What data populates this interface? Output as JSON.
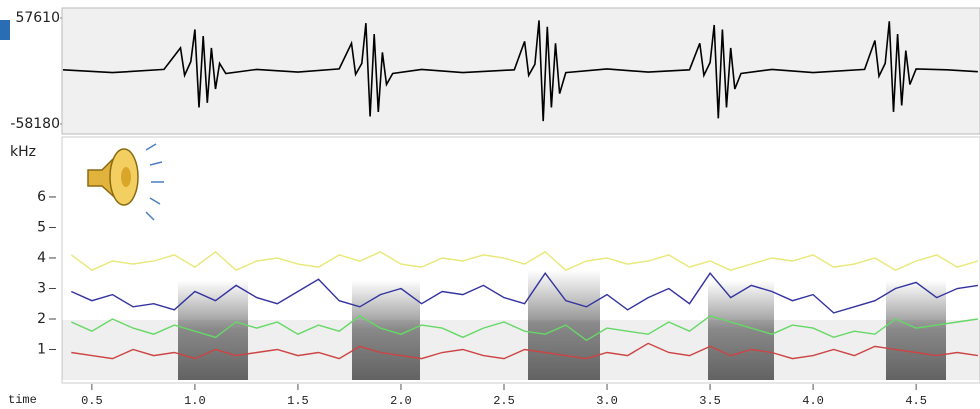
{
  "chart_data": [
    {
      "type": "line",
      "x": [
        0.36,
        0.6,
        0.85,
        0.93,
        0.95,
        0.98,
        1.0,
        1.02,
        1.04,
        1.06,
        1.08,
        1.1,
        1.12,
        1.15,
        1.3,
        1.5,
        1.7,
        1.76,
        1.78,
        1.81,
        1.83,
        1.85,
        1.87,
        1.89,
        1.91,
        1.93,
        1.96,
        2.1,
        2.3,
        2.55,
        2.6,
        2.62,
        2.65,
        2.67,
        2.69,
        2.71,
        2.73,
        2.75,
        2.77,
        2.8,
        3.0,
        3.2,
        3.4,
        3.45,
        3.47,
        3.5,
        3.52,
        3.54,
        3.56,
        3.58,
        3.6,
        3.62,
        3.65,
        3.8,
        4.0,
        4.25,
        4.3,
        4.32,
        4.35,
        4.37,
        4.39,
        4.41,
        4.43,
        4.45,
        4.47,
        4.5,
        4.65,
        4.8
      ],
      "values": [
        1000,
        -2000,
        1500,
        25000,
        -5000,
        10000,
        45000,
        -40000,
        38000,
        -35000,
        25000,
        -20000,
        8000,
        -3000,
        1500,
        -1500,
        2000,
        30000,
        -4000,
        8000,
        52000,
        -50000,
        40000,
        -45000,
        20000,
        -15000,
        -3000,
        1500,
        -2000,
        1000,
        32000,
        -5000,
        7000,
        55000,
        -55000,
        48000,
        -40000,
        30000,
        -25000,
        -2000,
        2000,
        -1500,
        1000,
        30000,
        -5000,
        9000,
        50000,
        -52000,
        45000,
        -40000,
        25000,
        -20000,
        -3000,
        1500,
        -2000,
        1500,
        33000,
        -6000,
        8000,
        54000,
        -45000,
        40000,
        -38000,
        22000,
        -15000,
        2000,
        1000,
        -1000
      ],
      "color": "#000000",
      "xlim": [
        0.355,
        4.81
      ],
      "ylim": [
        -58180,
        57610
      ],
      "yticks": [
        57610,
        -58180
      ]
    },
    {
      "type": "line",
      "ylabel": "kHz",
      "xlabel": "time",
      "x": [
        0.4,
        0.5,
        0.6,
        0.7,
        0.8,
        0.9,
        1.0,
        1.1,
        1.2,
        1.3,
        1.4,
        1.5,
        1.6,
        1.7,
        1.8,
        1.9,
        2.0,
        2.1,
        2.2,
        2.3,
        2.4,
        2.5,
        2.6,
        2.7,
        2.8,
        2.9,
        3.0,
        3.1,
        3.2,
        3.3,
        3.4,
        3.5,
        3.6,
        3.7,
        3.8,
        3.9,
        4.0,
        4.1,
        4.2,
        4.3,
        4.4,
        4.5,
        4.6,
        4.7,
        4.8
      ],
      "series": [
        {
          "color": "#e8e878",
          "values": [
            4.1,
            3.6,
            3.9,
            3.8,
            3.9,
            4.1,
            3.7,
            4.2,
            3.6,
            3.9,
            4.0,
            3.8,
            3.7,
            4.1,
            3.9,
            4.2,
            3.8,
            3.7,
            4.0,
            3.9,
            4.1,
            4.0,
            3.8,
            4.2,
            3.6,
            3.9,
            4.0,
            3.8,
            3.9,
            4.1,
            3.7,
            3.9,
            3.6,
            3.8,
            4.0,
            3.9,
            4.1,
            3.7,
            3.8,
            4.0,
            3.6,
            3.9,
            4.1,
            3.7,
            3.9
          ]
        },
        {
          "color": "#33339f",
          "values": [
            2.9,
            2.6,
            2.8,
            2.4,
            2.5,
            2.3,
            2.9,
            2.6,
            3.1,
            2.7,
            2.5,
            2.9,
            3.3,
            2.6,
            2.4,
            2.8,
            3.0,
            2.5,
            2.9,
            2.8,
            3.1,
            2.7,
            2.5,
            3.5,
            2.6,
            2.4,
            2.8,
            2.3,
            2.7,
            3.0,
            2.5,
            3.5,
            2.7,
            3.1,
            2.9,
            2.6,
            2.8,
            2.2,
            2.4,
            2.6,
            3.0,
            3.2,
            2.7,
            3.0,
            3.1
          ]
        },
        {
          "color": "#66d866",
          "values": [
            1.9,
            1.6,
            2.0,
            1.7,
            1.5,
            1.8,
            1.6,
            1.4,
            1.9,
            1.7,
            1.9,
            1.5,
            1.8,
            1.6,
            2.1,
            1.7,
            1.5,
            1.8,
            1.7,
            1.4,
            1.7,
            1.9,
            1.6,
            1.5,
            1.8,
            1.3,
            1.7,
            1.6,
            1.5,
            1.9,
            1.6,
            2.1,
            1.9,
            1.7,
            1.5,
            1.8,
            1.7,
            1.4,
            1.6,
            1.5,
            2.0,
            1.7,
            1.8,
            1.9,
            2.0
          ]
        },
        {
          "color": "#cc4444",
          "values": [
            0.9,
            0.8,
            0.7,
            1.0,
            0.8,
            0.9,
            0.7,
            1.0,
            0.8,
            0.9,
            1.0,
            0.8,
            0.9,
            0.7,
            1.1,
            0.9,
            0.8,
            0.7,
            0.9,
            1.0,
            0.8,
            0.7,
            1.0,
            0.9,
            0.8,
            0.7,
            0.9,
            0.8,
            1.2,
            0.9,
            0.8,
            1.1,
            0.8,
            1.0,
            0.9,
            0.7,
            0.8,
            1.0,
            0.8,
            1.1,
            1.0,
            0.9,
            0.8,
            0.9,
            0.8
          ]
        }
      ],
      "xlim": [
        0.355,
        4.81
      ],
      "ylim": [
        0,
        7.9
      ],
      "yticks": [
        1,
        2,
        3,
        4,
        5,
        6
      ],
      "xticks": [
        0.5,
        {
          "value": 1,
          "label": "1.0"
        },
        1.5,
        {
          "value": 2,
          "label": "2.0"
        },
        2.5,
        {
          "value": 3,
          "label": "3.0"
        },
        3.5,
        {
          "value": 4,
          "label": "4.0"
        },
        4.5
      ]
    }
  ]
}
